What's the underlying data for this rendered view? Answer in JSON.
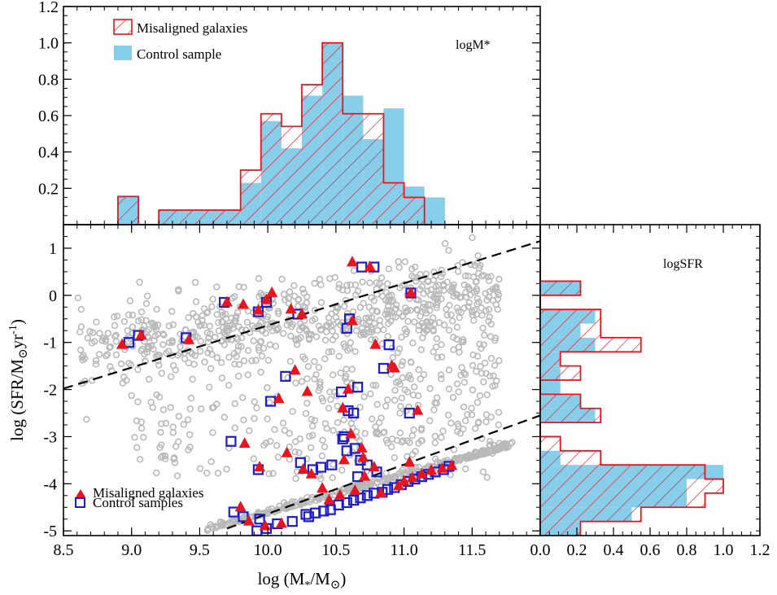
{
  "colors": {
    "misaligned": "#e8141e",
    "control_fill": "#87ceeb",
    "control_marker": "#1c1ccc",
    "parent": "#b9b9b9",
    "axis": "#000000"
  },
  "chart_data": [
    {
      "type": "bar",
      "panel": "top",
      "label": "logM*",
      "legend": [
        "Misaligned galaxies",
        "Control sample"
      ],
      "legend_position": "top-left",
      "bin_edges": [
        8.6,
        8.75,
        8.9,
        9.05,
        9.2,
        9.35,
        9.5,
        9.65,
        9.8,
        9.95,
        10.1,
        10.25,
        10.4,
        10.55,
        10.7,
        10.85,
        11.0,
        11.15,
        11.3,
        11.45,
        11.6
      ],
      "series": [
        {
          "name": "Misaligned galaxies",
          "values": [
            0,
            0,
            0.155,
            0,
            0.08,
            0.08,
            0.08,
            0.08,
            0.3,
            0.61,
            0.54,
            0.77,
            1.0,
            0.61,
            0.61,
            0.23,
            0.15,
            0,
            0,
            0
          ]
        },
        {
          "name": "Control sample",
          "values": [
            0,
            0,
            0.155,
            0,
            0.08,
            0.08,
            0.08,
            0.08,
            0.23,
            0.57,
            0.42,
            0.71,
            1.0,
            0.71,
            0.47,
            0.64,
            0.21,
            0.15,
            0,
            0
          ]
        }
      ],
      "xlim": [
        8.6,
        11.6
      ],
      "ylim": [
        0,
        1.2
      ],
      "yticks": [
        0.2,
        0.4,
        0.6,
        0.8,
        1.0,
        1.2
      ],
      "ytick_labels": [
        "0.2",
        "0.4",
        "0.6",
        "0.8",
        "1.0",
        "1.2"
      ]
    },
    {
      "type": "scatter",
      "panel": "main",
      "xlabel": "log (M*/M⊙)",
      "ylabel": "log (SFR/M⊙yr⁻¹)",
      "xlim": [
        8.5,
        12.0
      ],
      "ylim": [
        -5.1,
        1.5
      ],
      "xticks": [
        8.5,
        9.0,
        9.5,
        10.0,
        10.5,
        11.0,
        11.5
      ],
      "xtick_labels": [
        "8.5",
        "9.0",
        "9.5",
        "10.0",
        "10.5",
        "11.0",
        "11.5"
      ],
      "yticks": [
        1,
        0,
        -1,
        -2,
        -3,
        -4,
        -5
      ],
      "ytick_labels": [
        "1",
        "0",
        "-1",
        "-2",
        "-3",
        "-4",
        "-5"
      ],
      "legend": [
        "Misaligned galaxies",
        "Control samples"
      ],
      "legend_position": "bottom-left",
      "dashed_lines": [
        {
          "x": [
            8.5,
            12.0
          ],
          "y": [
            -1.98,
            1.15
          ]
        },
        {
          "x": [
            9.7,
            12.0
          ],
          "y": [
            -4.95,
            -2.55
          ]
        }
      ],
      "misaligned": {
        "x": [
          8.93,
          9.07,
          9.42,
          9.7,
          9.82,
          9.93,
          9.99,
          10.03,
          10.08,
          10.25,
          10.17,
          10.2,
          10.29,
          10.62,
          10.75,
          10.62,
          10.79,
          10.55,
          10.59,
          10.91,
          10.93,
          11.05,
          11.1,
          10.61,
          10.69,
          9.83,
          9.94,
          10.14,
          10.26,
          10.32,
          10.4,
          10.56,
          10.7,
          10.71,
          10.78,
          11.04,
          10.45,
          10.53,
          10.64,
          10.83,
          10.96,
          11.0,
          11.06,
          11.13,
          11.2,
          11.28,
          11.35,
          9.8,
          9.86,
          9.98,
          10.1
        ],
        "y": [
          -1.05,
          -0.85,
          -0.95,
          -0.15,
          -0.2,
          -0.32,
          -0.1,
          0.05,
          -2.2,
          -0.4,
          -0.3,
          -1.6,
          -2.05,
          0.7,
          0.6,
          -0.55,
          -1.05,
          -2.4,
          -2.0,
          -1.5,
          -1.55,
          0.05,
          -2.45,
          -2.95,
          -3.25,
          -3.15,
          -3.65,
          -3.35,
          -3.7,
          -3.8,
          -4.1,
          -3.5,
          -3.45,
          -3.85,
          -3.65,
          -3.55,
          -4.35,
          -4.25,
          -4.15,
          -4.2,
          -4.05,
          -3.95,
          -3.88,
          -3.8,
          -3.72,
          -3.68,
          -3.62,
          -4.5,
          -4.8,
          -4.9,
          -4.85
        ]
      },
      "control": {
        "x": [
          8.98,
          9.05,
          9.4,
          9.68,
          9.93,
          9.99,
          10.22,
          10.13,
          10.02,
          10.58,
          10.6,
          10.69,
          10.78,
          10.89,
          10.59,
          10.66,
          10.85,
          10.54,
          10.63,
          11.04,
          11.05,
          9.73,
          9.93,
          10.24,
          10.33,
          10.39,
          10.47,
          10.58,
          10.68,
          10.73,
          10.8,
          10.55,
          10.56,
          10.64,
          10.66,
          9.75,
          9.82,
          9.94,
          9.99,
          10.07,
          10.18,
          10.3,
          10.35,
          10.41,
          10.46,
          10.52,
          10.58,
          10.63,
          10.68,
          10.73,
          10.78,
          10.84,
          10.88,
          10.93,
          10.98,
          11.03,
          11.08,
          11.13,
          11.18,
          11.23,
          11.29,
          11.33,
          9.92,
          10.28
        ],
        "y": [
          -1.0,
          -0.85,
          -0.9,
          -0.15,
          -0.35,
          -0.15,
          -0.4,
          -1.72,
          -2.25,
          -0.7,
          -0.5,
          0.6,
          0.6,
          -1.05,
          -2.45,
          -1.95,
          -1.55,
          -2.05,
          -2.5,
          -2.5,
          0.05,
          -3.1,
          -3.7,
          -3.55,
          -3.7,
          -3.65,
          -3.6,
          -3.3,
          -3.5,
          -3.6,
          -3.75,
          -3.05,
          -3.0,
          -3.25,
          -3.85,
          -4.6,
          -4.7,
          -4.75,
          -4.95,
          -4.85,
          -4.8,
          -4.7,
          -4.62,
          -4.58,
          -4.55,
          -4.45,
          -4.4,
          -4.35,
          -4.3,
          -4.25,
          -4.2,
          -4.18,
          -4.12,
          -4.08,
          -4.02,
          -3.95,
          -3.9,
          -3.85,
          -3.8,
          -3.75,
          -3.7,
          -3.63,
          -5.0,
          -4.65
        ]
      }
    },
    {
      "type": "bar",
      "orientation": "horizontal",
      "panel": "right",
      "label": "logSFR",
      "xlim": [
        0,
        1.2
      ],
      "xticks": [
        0.0,
        0.2,
        0.4,
        0.6,
        0.8,
        1.0,
        1.2
      ],
      "xtick_labels": [
        "0.0",
        "0.2",
        "0.4",
        "0.6",
        "0.8",
        "1.0",
        "1.2"
      ],
      "bin_edges": [
        -5.1,
        -4.8,
        -4.5,
        -4.2,
        -3.9,
        -3.6,
        -3.3,
        -3.0,
        -2.7,
        -2.4,
        -2.1,
        -1.8,
        -1.5,
        -1.2,
        -0.9,
        -0.6,
        -0.3,
        0.0,
        0.3,
        0.6
      ],
      "series": [
        {
          "name": "Misaligned galaxies",
          "values": [
            0.22,
            0.55,
            0.9,
            1.0,
            0.9,
            0.33,
            0.11,
            0,
            0.33,
            0.22,
            0,
            0.22,
            0.11,
            0.55,
            0.33,
            0.33,
            0,
            0.22,
            0
          ]
        },
        {
          "name": "Control sample",
          "values": [
            0.22,
            0.5,
            0.8,
            0.8,
            1.0,
            0.11,
            0,
            0,
            0.3,
            0.22,
            0.11,
            0.11,
            0.11,
            0.3,
            0.22,
            0.3,
            0,
            0.22,
            0
          ]
        }
      ]
    }
  ]
}
